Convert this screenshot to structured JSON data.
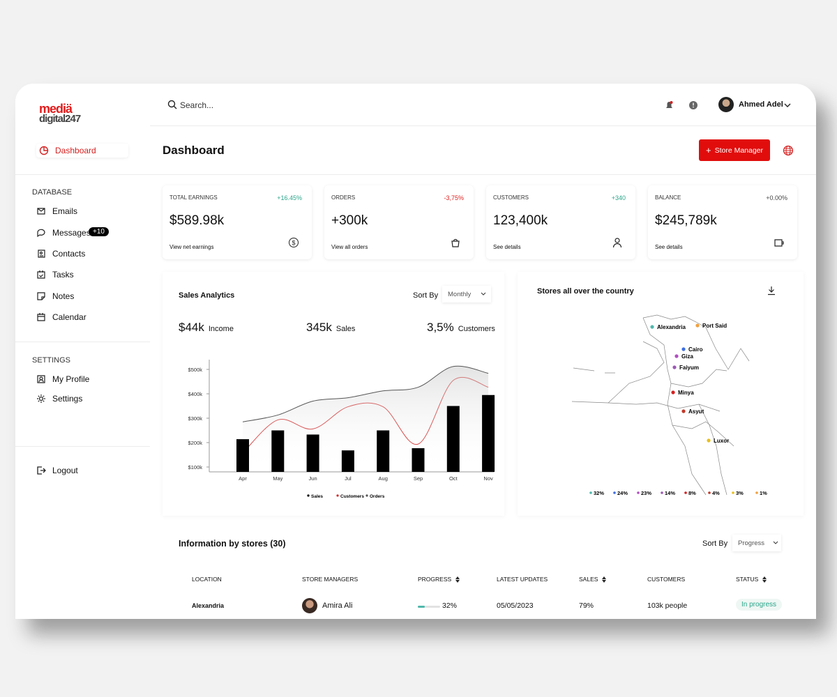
{
  "logo": {
    "top": "mediä",
    "bottom": "digital247"
  },
  "header": {
    "search": "Search...",
    "user": "Ahmed Adel",
    "title": "Dashboard",
    "button": "Store Manager"
  },
  "sidebar": {
    "active": "Dashboard",
    "sections": [
      {
        "title": "DATABASE",
        "items": [
          "Emails",
          "Messages",
          "Contacts",
          "Tasks",
          "Notes",
          "Calendar"
        ]
      },
      {
        "title": "SETTINGS",
        "items": [
          "My Profile",
          "Settings"
        ]
      }
    ],
    "badge": "+10",
    "logout": "Logout"
  },
  "stats": [
    {
      "label": "TOTAL EARNINGS",
      "change": "+16.45%",
      "value": "$589.98k",
      "link": "View net earnings"
    },
    {
      "label": "ORDERS",
      "change": "-3,75%",
      "value": "+300k",
      "link": "View all orders"
    },
    {
      "label": "CUSTOMERS",
      "change": "+340",
      "value": "123,400k",
      "link": "See details"
    },
    {
      "label": "BALANCE",
      "change": "+0.00%",
      "value": "$245,789k",
      "link": "See details"
    }
  ],
  "sales_analytics": {
    "title": "Sales Analytics",
    "sort_label": "Sort By",
    "sort_value": "Monthly",
    "summary": [
      {
        "value": "$44k",
        "label": "Income"
      },
      {
        "value": "345k",
        "label": "Sales"
      },
      {
        "value": "3,5%",
        "label": "Customers"
      }
    ]
  },
  "chart_data": {
    "type": "bar",
    "categories": [
      "Apr",
      "May",
      "Jun",
      "Jul",
      "Aug",
      "Sep",
      "Oct",
      "Nov"
    ],
    "series": [
      {
        "name": "Sales",
        "type": "bar",
        "color": "#000000",
        "values": [
          214,
          250,
          233,
          168,
          250,
          177,
          350,
          395
        ]
      },
      {
        "name": "Customers",
        "type": "line",
        "color": "#d42a2a",
        "values": [
          157,
          293,
          256,
          347,
          347,
          194,
          455,
          427
        ]
      },
      {
        "name": "Orders",
        "type": "line",
        "color": "#555555",
        "values": [
          285,
          313,
          370,
          384,
          412,
          427,
          512,
          484
        ]
      }
    ],
    "ylim": [
      80,
      540
    ],
    "yticks": [
      {
        "value": 100,
        "label": "$100k"
      },
      {
        "value": 200,
        "label": "$200k"
      },
      {
        "value": 300,
        "label": "$300k"
      },
      {
        "value": 400,
        "label": "$400k"
      },
      {
        "value": 500,
        "label": "$500k"
      }
    ]
  },
  "map": {
    "title": "Stores all over the country",
    "cities": [
      {
        "name": "Alexandria",
        "color": "#4fb8ad"
      },
      {
        "name": "Port Said",
        "color": "#f0a040"
      },
      {
        "name": "Cairo",
        "color": "#3d6ee0"
      },
      {
        "name": "Giza",
        "color": "#b04fc0"
      },
      {
        "name": "Faiyum",
        "color": "#9b59b6"
      },
      {
        "name": "Minya",
        "color": "#d42020"
      },
      {
        "name": "Asyut",
        "color": "#c0392b"
      },
      {
        "name": "Luxor",
        "color": "#e8c020"
      }
    ],
    "legend": [
      {
        "label": "32%",
        "color": "#4fb8ad"
      },
      {
        "label": "24%",
        "color": "#3d6ee0"
      },
      {
        "label": "23%",
        "color": "#b04fc0"
      },
      {
        "label": "14%",
        "color": "#9b59b6"
      },
      {
        "label": "8%",
        "color": "#d42020"
      },
      {
        "label": "4%",
        "color": "#c0392b"
      },
      {
        "label": "3%",
        "color": "#e8c020"
      },
      {
        "label": "1%",
        "color": "#f0a040"
      }
    ]
  },
  "table": {
    "title": "Information by stores (30)",
    "sort_label": "Sort By",
    "sort_value": "Progress",
    "headers": [
      "LOCATION",
      "STORE MANAGERS",
      "PROGRESS",
      "LATEST UPDATES",
      "SALES",
      "CUSTOMERS",
      "STATUS"
    ],
    "rows": [
      [
        "Alexandria",
        "Amira Ali",
        "32%",
        "05/05/2023",
        "79%",
        "103k people",
        "In progress"
      ]
    ]
  }
}
